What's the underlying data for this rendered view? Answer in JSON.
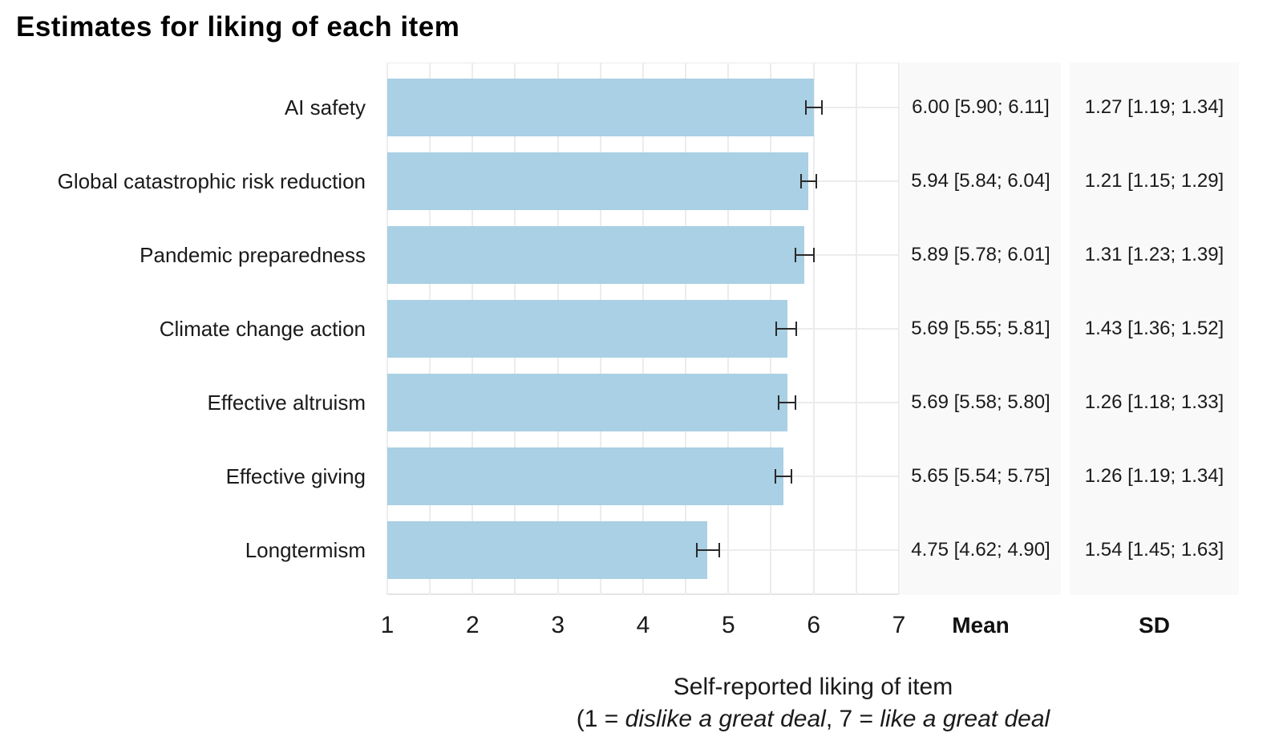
{
  "chart_data": {
    "type": "bar",
    "orientation": "horizontal",
    "title": "Estimates for liking of each item",
    "categories": [
      "AI safety",
      "Global catastrophic risk reduction",
      "Pandemic preparedness",
      "Climate change action",
      "Effective altruism",
      "Effective giving",
      "Longtermism"
    ],
    "means": [
      6.0,
      5.94,
      5.89,
      5.69,
      5.69,
      5.65,
      4.75
    ],
    "ci_low": [
      5.9,
      5.84,
      5.78,
      5.55,
      5.58,
      5.54,
      4.62
    ],
    "ci_high": [
      6.11,
      6.04,
      6.01,
      5.81,
      5.8,
      5.75,
      4.9
    ],
    "sd": [
      1.27,
      1.21,
      1.31,
      1.43,
      1.26,
      1.26,
      1.54
    ],
    "sd_ci_low": [
      1.19,
      1.15,
      1.23,
      1.36,
      1.18,
      1.19,
      1.45
    ],
    "sd_ci_high": [
      1.34,
      1.29,
      1.39,
      1.52,
      1.33,
      1.34,
      1.63
    ],
    "mean_labels": [
      "6.00 [5.90; 6.11]",
      "5.94 [5.84; 6.04]",
      "5.89 [5.78; 6.01]",
      "5.69 [5.55; 5.81]",
      "5.69 [5.58; 5.80]",
      "5.65 [5.54; 5.75]",
      "4.75 [4.62; 4.90]"
    ],
    "sd_labels": [
      "1.27 [1.19; 1.34]",
      "1.21 [1.15; 1.29]",
      "1.31 [1.23; 1.39]",
      "1.43 [1.36; 1.52]",
      "1.26 [1.18; 1.33]",
      "1.26 [1.19; 1.34]",
      "1.54 [1.45; 1.63]"
    ],
    "mean_header": "Mean",
    "sd_header": "SD",
    "x_ticks": [
      "1",
      "2",
      "3",
      "4",
      "5",
      "6",
      "7"
    ],
    "xlim": [
      1,
      7
    ],
    "grid": "on",
    "legend": "none",
    "xlabel_line1": "Self-reported liking of item",
    "xlabel_line2_parts": [
      {
        "text": "(1 = ",
        "italic": false
      },
      {
        "text": "dislike a great deal",
        "italic": true
      },
      {
        "text": ", 7 = ",
        "italic": false
      },
      {
        "text": "like a great deal",
        "italic": true
      }
    ],
    "bar_color": "#a6cee3",
    "panel_bg": "#f9f9f9",
    "grid_color": "#ececec",
    "errorbar_color": "#2a2a2a"
  }
}
